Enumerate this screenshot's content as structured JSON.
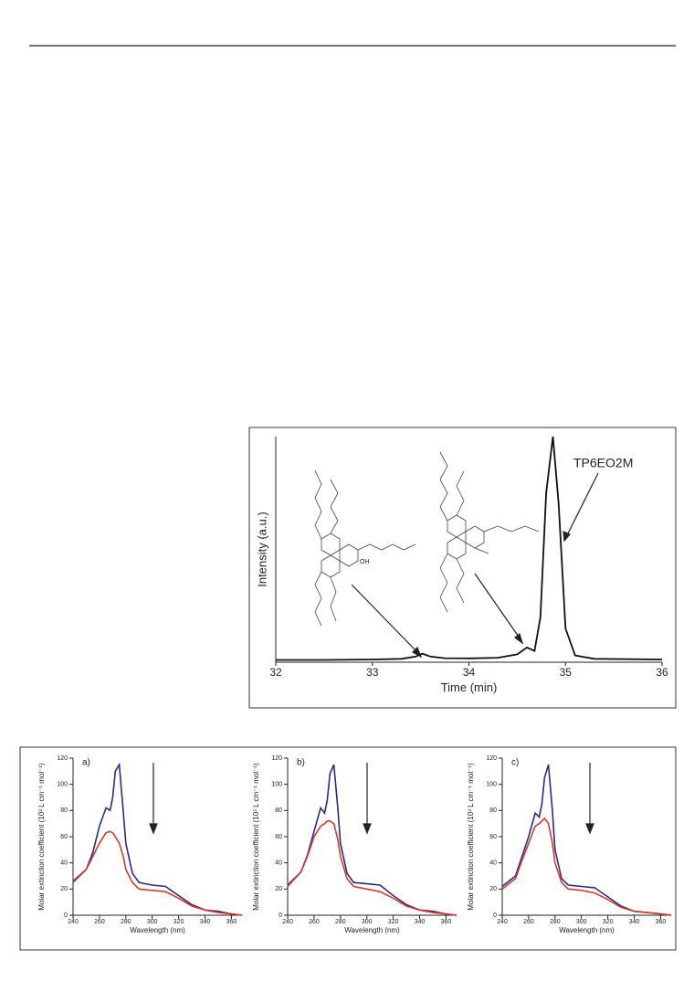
{
  "chart_data": [
    {
      "type": "line",
      "x_label": "Time (min)",
      "y_label": "Intensity (a.u.)",
      "annotations": [
        "TP6EO2M",
        "OH"
      ],
      "x": [
        32,
        32.5,
        33,
        33.3,
        33.45,
        33.52,
        33.6,
        33.75,
        34,
        34.3,
        34.5,
        34.6,
        34.68,
        34.74,
        34.8,
        34.87,
        34.93,
        35,
        35.1,
        35.3,
        36
      ],
      "values": [
        1,
        1,
        1.2,
        1.5,
        2.5,
        3.8,
        2.5,
        1.8,
        1.7,
        2,
        3.5,
        6.5,
        5,
        20,
        75,
        100,
        70,
        15,
        3,
        1.5,
        1.2
      ],
      "color": "#111111",
      "xlim": [
        32,
        36
      ],
      "xticks": [
        32,
        33,
        34,
        35,
        36
      ],
      "ylim": [
        0,
        100
      ]
    },
    {
      "type": "line",
      "panel_label": "a)",
      "x_label": "Wavelength (nm)",
      "y_label": "Molar extinction coefficient (10³ L cm⁻¹ mol⁻¹)",
      "x": [
        240,
        250,
        255,
        260,
        265,
        268,
        270,
        272,
        275,
        278,
        280,
        285,
        290,
        300,
        310,
        320,
        330,
        340,
        350,
        360,
        368
      ],
      "series": [
        {
          "color": "#2a2a8c",
          "values": [
            26,
            35,
            48,
            68,
            82,
            80,
            90,
            110,
            115,
            80,
            55,
            32,
            25,
            23,
            22,
            15,
            8,
            4,
            3,
            1,
            0
          ]
        },
        {
          "color": "#d63a2a",
          "values": [
            25,
            35,
            45,
            55,
            63,
            64,
            63,
            60,
            55,
            45,
            35,
            25,
            20,
            19,
            18,
            13,
            7,
            4,
            2,
            1,
            0
          ]
        }
      ],
      "xlim": [
        240,
        368
      ],
      "xticks": [
        240,
        260,
        280,
        300,
        320,
        340,
        360
      ],
      "ylim": [
        0,
        120
      ],
      "yticks": [
        0,
        20,
        40,
        60,
        80,
        100,
        120
      ]
    },
    {
      "type": "line",
      "panel_label": "b)",
      "x_label": "Wavelength (nm)",
      "y_label": "Molar extinction coefficient (10³ L cm⁻¹ mol⁻¹)",
      "x": [
        240,
        250,
        255,
        260,
        265,
        268,
        270,
        272,
        275,
        278,
        280,
        285,
        290,
        300,
        310,
        320,
        330,
        340,
        350,
        360,
        368
      ],
      "series": [
        {
          "color": "#2a2a8c",
          "values": [
            23,
            33,
            46,
            64,
            82,
            78,
            88,
            108,
            115,
            82,
            55,
            32,
            25,
            24,
            23,
            15,
            8,
            4,
            3,
            1,
            0
          ]
        },
        {
          "color": "#d63a2a",
          "values": [
            22,
            33,
            45,
            60,
            68,
            70,
            72,
            72,
            70,
            58,
            45,
            28,
            22,
            20,
            18,
            13,
            7,
            4,
            2,
            1,
            0
          ]
        }
      ],
      "xlim": [
        240,
        368
      ],
      "xticks": [
        240,
        260,
        280,
        300,
        320,
        340,
        360
      ],
      "ylim": [
        0,
        120
      ],
      "yticks": [
        0,
        20,
        40,
        60,
        80,
        100,
        120
      ]
    },
    {
      "type": "line",
      "panel_label": "c)",
      "x_label": "Wavelength (nm)",
      "y_label": "Molar extinction coefficient (10³ L cm⁻¹ mol⁻¹)",
      "x": [
        240,
        250,
        255,
        260,
        265,
        268,
        270,
        272,
        275,
        278,
        280,
        285,
        290,
        300,
        310,
        320,
        330,
        340,
        350,
        360,
        368
      ],
      "series": [
        {
          "color": "#2a2a8c",
          "values": [
            22,
            30,
            45,
            60,
            78,
            75,
            85,
            105,
            115,
            80,
            50,
            28,
            23,
            22,
            21,
            14,
            7,
            3,
            2,
            1,
            0
          ]
        },
        {
          "color": "#d63a2a",
          "values": [
            20,
            28,
            42,
            55,
            68,
            70,
            72,
            74,
            70,
            55,
            40,
            25,
            20,
            19,
            17,
            12,
            6,
            3,
            2,
            1,
            0
          ]
        }
      ],
      "xlim": [
        240,
        368
      ],
      "xticks": [
        240,
        260,
        280,
        300,
        320,
        340,
        360
      ],
      "ylim": [
        0,
        120
      ],
      "yticks": [
        0,
        20,
        40,
        60,
        80,
        100,
        120
      ]
    }
  ]
}
